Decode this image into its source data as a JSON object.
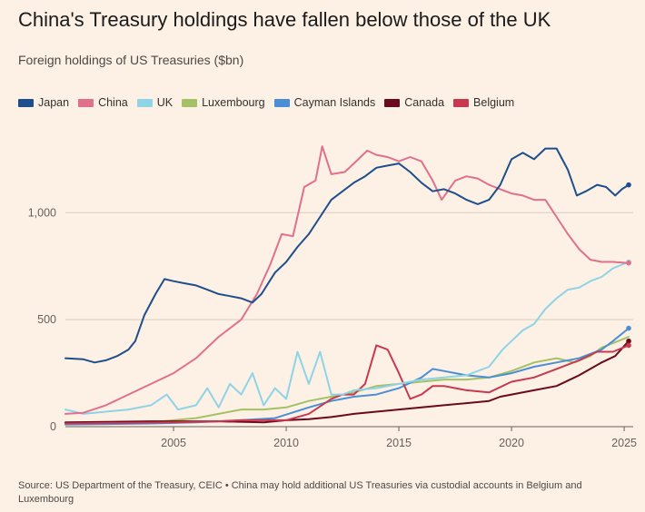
{
  "title": "China's Treasury holdings have fallen below those of the UK",
  "subtitle": "Foreign holdings of US Treasuries ($bn)",
  "source": "Source: US Department of the Treasury, CEIC • China may hold additional US Treasuries via custodial accounts in Belgium and Luxembourg",
  "chart_data": {
    "type": "line",
    "ylim": [
      0,
      1400
    ],
    "xlim": [
      2000.2,
      2025.4
    ],
    "y_ticks": [
      0,
      500,
      1000
    ],
    "y_tick_labels": [
      "0",
      "500",
      "1,000"
    ],
    "x_ticks": [
      2005,
      2010,
      2015,
      2020,
      2025
    ],
    "x_tick_labels": [
      "2005",
      "2010",
      "2015",
      "2020",
      "2025"
    ],
    "grid": true,
    "legend_position": "top",
    "series": [
      {
        "name": "Japan",
        "color": "#1f4e8c",
        "end_marker": true,
        "points": [
          [
            2000.2,
            320
          ],
          [
            2001.0,
            315
          ],
          [
            2001.5,
            300
          ],
          [
            2002.0,
            310
          ],
          [
            2002.5,
            330
          ],
          [
            2003.0,
            360
          ],
          [
            2003.3,
            400
          ],
          [
            2003.7,
            520
          ],
          [
            2004.2,
            620
          ],
          [
            2004.6,
            690
          ],
          [
            2005.0,
            680
          ],
          [
            2005.5,
            670
          ],
          [
            2006.0,
            660
          ],
          [
            2006.5,
            640
          ],
          [
            2007.0,
            620
          ],
          [
            2007.5,
            610
          ],
          [
            2008.0,
            600
          ],
          [
            2008.5,
            580
          ],
          [
            2008.9,
            620
          ],
          [
            2009.5,
            720
          ],
          [
            2010.0,
            770
          ],
          [
            2010.5,
            840
          ],
          [
            2011.0,
            900
          ],
          [
            2011.5,
            980
          ],
          [
            2012.0,
            1060
          ],
          [
            2012.5,
            1100
          ],
          [
            2013.0,
            1140
          ],
          [
            2013.5,
            1170
          ],
          [
            2014.0,
            1210
          ],
          [
            2014.5,
            1220
          ],
          [
            2015.0,
            1230
          ],
          [
            2015.5,
            1190
          ],
          [
            2016.0,
            1140
          ],
          [
            2016.5,
            1100
          ],
          [
            2017.0,
            1110
          ],
          [
            2017.5,
            1090
          ],
          [
            2018.0,
            1060
          ],
          [
            2018.5,
            1040
          ],
          [
            2019.0,
            1060
          ],
          [
            2019.5,
            1130
          ],
          [
            2020.0,
            1250
          ],
          [
            2020.5,
            1280
          ],
          [
            2021.0,
            1250
          ],
          [
            2021.5,
            1300
          ],
          [
            2022.0,
            1300
          ],
          [
            2022.5,
            1200
          ],
          [
            2022.9,
            1080
          ],
          [
            2023.3,
            1100
          ],
          [
            2023.8,
            1130
          ],
          [
            2024.2,
            1120
          ],
          [
            2024.6,
            1080
          ],
          [
            2024.9,
            1110
          ],
          [
            2025.2,
            1130
          ]
        ]
      },
      {
        "name": "China",
        "color": "#e0708c",
        "end_marker": true,
        "points": [
          [
            2000.2,
            60
          ],
          [
            2001.0,
            65
          ],
          [
            2002.0,
            100
          ],
          [
            2003.0,
            150
          ],
          [
            2004.0,
            200
          ],
          [
            2005.0,
            250
          ],
          [
            2006.0,
            320
          ],
          [
            2007.0,
            420
          ],
          [
            2008.0,
            500
          ],
          [
            2008.7,
            620
          ],
          [
            2009.3,
            760
          ],
          [
            2009.8,
            900
          ],
          [
            2010.3,
            890
          ],
          [
            2010.8,
            1120
          ],
          [
            2011.3,
            1150
          ],
          [
            2011.6,
            1310
          ],
          [
            2012.0,
            1180
          ],
          [
            2012.6,
            1190
          ],
          [
            2013.0,
            1230
          ],
          [
            2013.6,
            1290
          ],
          [
            2014.0,
            1270
          ],
          [
            2014.5,
            1260
          ],
          [
            2015.0,
            1240
          ],
          [
            2015.5,
            1260
          ],
          [
            2016.0,
            1240
          ],
          [
            2016.5,
            1150
          ],
          [
            2016.9,
            1060
          ],
          [
            2017.5,
            1150
          ],
          [
            2018.0,
            1170
          ],
          [
            2018.5,
            1160
          ],
          [
            2019.0,
            1130
          ],
          [
            2019.5,
            1110
          ],
          [
            2020.0,
            1090
          ],
          [
            2020.5,
            1080
          ],
          [
            2021.0,
            1060
          ],
          [
            2021.5,
            1060
          ],
          [
            2022.0,
            980
          ],
          [
            2022.5,
            900
          ],
          [
            2023.0,
            830
          ],
          [
            2023.5,
            780
          ],
          [
            2024.0,
            770
          ],
          [
            2024.5,
            770
          ],
          [
            2025.2,
            765
          ]
        ]
      },
      {
        "name": "UK",
        "color": "#8fd3e6",
        "end_marker": true,
        "points": [
          [
            2000.2,
            80
          ],
          [
            2001.0,
            60
          ],
          [
            2002.0,
            70
          ],
          [
            2003.0,
            80
          ],
          [
            2004.0,
            100
          ],
          [
            2004.7,
            150
          ],
          [
            2005.2,
            80
          ],
          [
            2006.0,
            100
          ],
          [
            2006.5,
            180
          ],
          [
            2007.0,
            90
          ],
          [
            2007.5,
            200
          ],
          [
            2008.0,
            150
          ],
          [
            2008.5,
            250
          ],
          [
            2009.0,
            100
          ],
          [
            2009.5,
            180
          ],
          [
            2010.0,
            130
          ],
          [
            2010.5,
            350
          ],
          [
            2011.0,
            200
          ],
          [
            2011.5,
            350
          ],
          [
            2012.0,
            150
          ],
          [
            2012.5,
            150
          ],
          [
            2013.0,
            170
          ],
          [
            2014.0,
            180
          ],
          [
            2015.0,
            200
          ],
          [
            2016.0,
            220
          ],
          [
            2017.0,
            230
          ],
          [
            2018.0,
            240
          ],
          [
            2019.0,
            280
          ],
          [
            2019.6,
            360
          ],
          [
            2020.0,
            400
          ],
          [
            2020.5,
            450
          ],
          [
            2021.0,
            480
          ],
          [
            2021.5,
            550
          ],
          [
            2022.0,
            600
          ],
          [
            2022.5,
            640
          ],
          [
            2023.0,
            650
          ],
          [
            2023.5,
            680
          ],
          [
            2024.0,
            700
          ],
          [
            2024.5,
            740
          ],
          [
            2025.2,
            770
          ]
        ]
      },
      {
        "name": "Luxembourg",
        "color": "#a4c165",
        "end_marker": false,
        "points": [
          [
            2000.2,
            15
          ],
          [
            2002.0,
            20
          ],
          [
            2004.0,
            20
          ],
          [
            2005.0,
            30
          ],
          [
            2006.0,
            40
          ],
          [
            2007.0,
            60
          ],
          [
            2008.0,
            80
          ],
          [
            2009.0,
            80
          ],
          [
            2010.0,
            90
          ],
          [
            2011.0,
            120
          ],
          [
            2012.0,
            140
          ],
          [
            2013.0,
            160
          ],
          [
            2014.0,
            190
          ],
          [
            2015.0,
            200
          ],
          [
            2016.0,
            210
          ],
          [
            2017.0,
            220
          ],
          [
            2018.0,
            220
          ],
          [
            2019.0,
            230
          ],
          [
            2020.0,
            260
          ],
          [
            2021.0,
            300
          ],
          [
            2022.0,
            320
          ],
          [
            2022.8,
            300
          ],
          [
            2023.5,
            330
          ],
          [
            2024.0,
            370
          ],
          [
            2024.5,
            390
          ],
          [
            2025.2,
            420
          ]
        ]
      },
      {
        "name": "Cayman Islands",
        "color": "#4a8fd6",
        "end_marker": true,
        "points": [
          [
            2000.2,
            10
          ],
          [
            2004.0,
            15
          ],
          [
            2006.0,
            20
          ],
          [
            2008.0,
            30
          ],
          [
            2009.5,
            40
          ],
          [
            2011.0,
            90
          ],
          [
            2012.0,
            120
          ],
          [
            2013.0,
            140
          ],
          [
            2014.0,
            150
          ],
          [
            2015.0,
            180
          ],
          [
            2016.0,
            230
          ],
          [
            2016.5,
            270
          ],
          [
            2017.0,
            260
          ],
          [
            2018.0,
            240
          ],
          [
            2019.0,
            230
          ],
          [
            2020.0,
            250
          ],
          [
            2021.0,
            280
          ],
          [
            2022.0,
            300
          ],
          [
            2023.0,
            320
          ],
          [
            2024.0,
            360
          ],
          [
            2024.5,
            400
          ],
          [
            2025.2,
            460
          ]
        ]
      },
      {
        "name": "Canada",
        "color": "#6b0a1c",
        "end_marker": true,
        "points": [
          [
            2000.2,
            20
          ],
          [
            2004.0,
            25
          ],
          [
            2007.0,
            25
          ],
          [
            2009.0,
            20
          ],
          [
            2010.0,
            30
          ],
          [
            2011.0,
            35
          ],
          [
            2012.0,
            45
          ],
          [
            2013.0,
            60
          ],
          [
            2014.0,
            70
          ],
          [
            2015.0,
            80
          ],
          [
            2016.0,
            90
          ],
          [
            2017.0,
            100
          ],
          [
            2018.0,
            110
          ],
          [
            2019.0,
            120
          ],
          [
            2019.5,
            140
          ],
          [
            2020.0,
            150
          ],
          [
            2021.0,
            170
          ],
          [
            2022.0,
            190
          ],
          [
            2023.0,
            240
          ],
          [
            2024.0,
            300
          ],
          [
            2024.6,
            330
          ],
          [
            2025.2,
            400
          ]
        ]
      },
      {
        "name": "Belgium",
        "color": "#c8394f",
        "end_marker": true,
        "points": [
          [
            2000.2,
            15
          ],
          [
            2005.0,
            20
          ],
          [
            2007.0,
            25
          ],
          [
            2008.0,
            30
          ],
          [
            2009.0,
            30
          ],
          [
            2010.0,
            30
          ],
          [
            2011.0,
            60
          ],
          [
            2012.0,
            130
          ],
          [
            2012.5,
            150
          ],
          [
            2013.0,
            150
          ],
          [
            2013.5,
            200
          ],
          [
            2014.0,
            380
          ],
          [
            2014.5,
            360
          ],
          [
            2015.0,
            250
          ],
          [
            2015.5,
            130
          ],
          [
            2016.0,
            150
          ],
          [
            2016.5,
            190
          ],
          [
            2017.0,
            190
          ],
          [
            2018.0,
            170
          ],
          [
            2019.0,
            160
          ],
          [
            2020.0,
            210
          ],
          [
            2021.0,
            230
          ],
          [
            2022.0,
            270
          ],
          [
            2023.0,
            310
          ],
          [
            2023.8,
            350
          ],
          [
            2024.5,
            350
          ],
          [
            2025.2,
            380
          ]
        ]
      }
    ]
  }
}
